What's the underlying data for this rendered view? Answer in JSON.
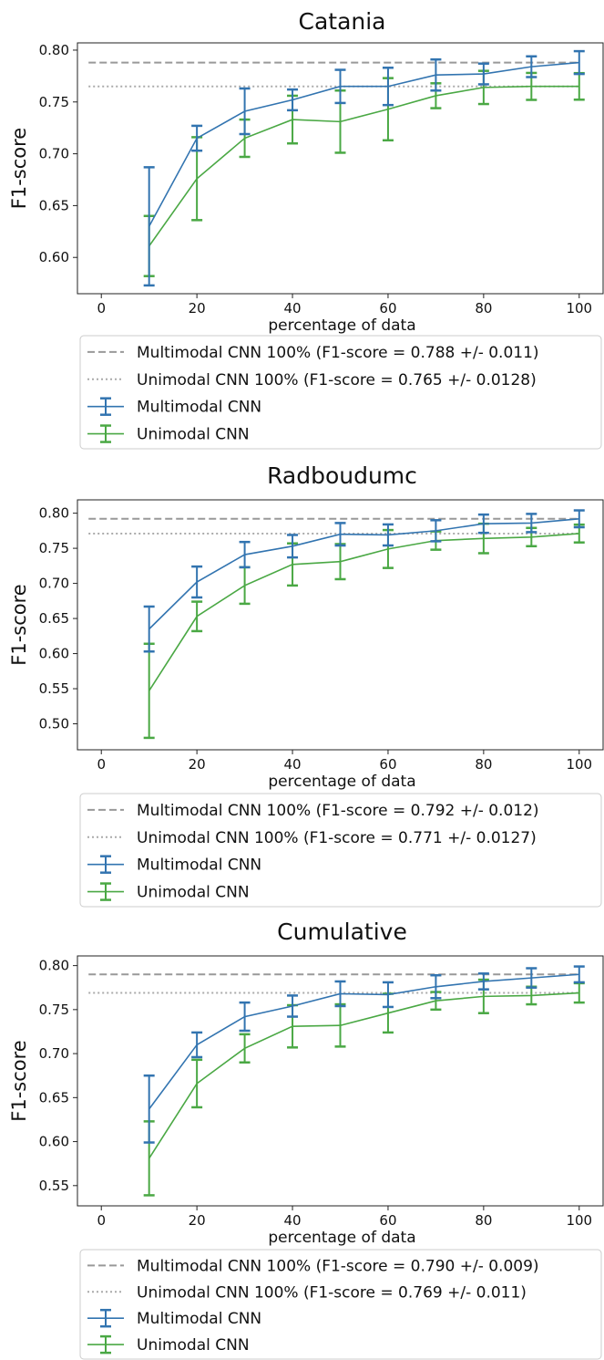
{
  "chart_data": [
    {
      "type": "line",
      "title": "Catania",
      "xlabel": "percentage of data",
      "ylabel": "F1-score",
      "xlim": [
        -5,
        105
      ],
      "ylim": [
        0.565,
        0.807
      ],
      "xticks": [
        0,
        20,
        40,
        60,
        80,
        100
      ],
      "yticks": [
        0.6,
        0.65,
        0.7,
        0.75,
        0.8
      ],
      "ytick_labels": [
        "0.60",
        "0.65",
        "0.70",
        "0.75",
        "0.80"
      ],
      "x": [
        10,
        20,
        30,
        40,
        50,
        60,
        70,
        80,
        90,
        100
      ],
      "grid": false,
      "legend_position": "below",
      "reference_lines": [
        {
          "name": "Multimodal CNN 100% (F1-score = 0.788 +/- 0.011)",
          "y": 0.788,
          "style": "dashed",
          "color": "#999999"
        },
        {
          "name": "Unimodal CNN 100% (F1-score = 0.765 +/- 0.0128)",
          "y": 0.765,
          "style": "dotted",
          "color": "#aaaaaa"
        }
      ],
      "series": [
        {
          "name": "Multimodal CNN",
          "color": "#3274b0",
          "values": [
            0.63,
            0.715,
            0.741,
            0.752,
            0.765,
            0.765,
            0.776,
            0.777,
            0.784,
            0.788
          ],
          "err": [
            0.057,
            0.012,
            0.022,
            0.01,
            0.016,
            0.018,
            0.015,
            0.01,
            0.01,
            0.011
          ]
        },
        {
          "name": "Unimodal CNN",
          "color": "#4aa844",
          "values": [
            0.611,
            0.676,
            0.715,
            0.733,
            0.731,
            0.743,
            0.756,
            0.764,
            0.765,
            0.765
          ],
          "err": [
            0.029,
            0.04,
            0.018,
            0.023,
            0.03,
            0.03,
            0.012,
            0.016,
            0.013,
            0.0128
          ]
        }
      ]
    },
    {
      "type": "line",
      "title": "Radboudumc",
      "xlabel": "percentage of data",
      "ylabel": "F1-score",
      "xlim": [
        -5,
        105
      ],
      "ylim": [
        0.463,
        0.819
      ],
      "xticks": [
        0,
        20,
        40,
        60,
        80,
        100
      ],
      "yticks": [
        0.5,
        0.55,
        0.6,
        0.65,
        0.7,
        0.75,
        0.8
      ],
      "ytick_labels": [
        "0.50",
        "0.55",
        "0.60",
        "0.65",
        "0.70",
        "0.75",
        "0.80"
      ],
      "x": [
        10,
        20,
        30,
        40,
        50,
        60,
        70,
        80,
        90,
        100
      ],
      "grid": false,
      "legend_position": "below",
      "reference_lines": [
        {
          "name": "Multimodal CNN 100% (F1-score = 0.792 +/- 0.012)",
          "y": 0.792,
          "style": "dashed",
          "color": "#999999"
        },
        {
          "name": "Unimodal CNN 100% (F1-score = 0.771 +/- 0.0127)",
          "y": 0.771,
          "style": "dotted",
          "color": "#aaaaaa"
        }
      ],
      "series": [
        {
          "name": "Multimodal CNN",
          "color": "#3274b0",
          "values": [
            0.635,
            0.702,
            0.741,
            0.753,
            0.77,
            0.769,
            0.775,
            0.785,
            0.786,
            0.792
          ],
          "err": [
            0.032,
            0.022,
            0.018,
            0.016,
            0.016,
            0.015,
            0.015,
            0.013,
            0.013,
            0.012
          ]
        },
        {
          "name": "Unimodal CNN",
          "color": "#4aa844",
          "values": [
            0.547,
            0.653,
            0.697,
            0.727,
            0.731,
            0.749,
            0.761,
            0.764,
            0.766,
            0.771
          ],
          "err": [
            0.067,
            0.021,
            0.026,
            0.03,
            0.025,
            0.027,
            0.013,
            0.021,
            0.013,
            0.0127
          ]
        }
      ]
    },
    {
      "type": "line",
      "title": "Cumulative",
      "xlabel": "percentage of data",
      "ylabel": "F1-score",
      "xlim": [
        -5,
        105
      ],
      "ylim": [
        0.527,
        0.811
      ],
      "xticks": [
        0,
        20,
        40,
        60,
        80,
        100
      ],
      "yticks": [
        0.55,
        0.6,
        0.65,
        0.7,
        0.75,
        0.8
      ],
      "ytick_labels": [
        "0.55",
        "0.60",
        "0.65",
        "0.70",
        "0.75",
        "0.80"
      ],
      "x": [
        10,
        20,
        30,
        40,
        50,
        60,
        70,
        80,
        90,
        100
      ],
      "grid": false,
      "legend_position": "below",
      "reference_lines": [
        {
          "name": "Multimodal CNN 100% (F1-score = 0.790 +/- 0.009)",
          "y": 0.79,
          "style": "dashed",
          "color": "#999999"
        },
        {
          "name": "Unimodal CNN 100% (F1-score = 0.769 +/- 0.011)",
          "y": 0.769,
          "style": "dotted",
          "color": "#aaaaaa"
        }
      ],
      "series": [
        {
          "name": "Multimodal CNN",
          "color": "#3274b0",
          "values": [
            0.637,
            0.71,
            0.742,
            0.754,
            0.768,
            0.767,
            0.776,
            0.782,
            0.786,
            0.79
          ],
          "err": [
            0.038,
            0.014,
            0.016,
            0.012,
            0.014,
            0.014,
            0.013,
            0.009,
            0.011,
            0.009
          ]
        },
        {
          "name": "Unimodal CNN",
          "color": "#4aa844",
          "values": [
            0.581,
            0.666,
            0.706,
            0.731,
            0.732,
            0.746,
            0.76,
            0.765,
            0.766,
            0.769
          ],
          "err": [
            0.042,
            0.027,
            0.016,
            0.024,
            0.024,
            0.022,
            0.01,
            0.019,
            0.01,
            0.011
          ]
        }
      ]
    }
  ]
}
